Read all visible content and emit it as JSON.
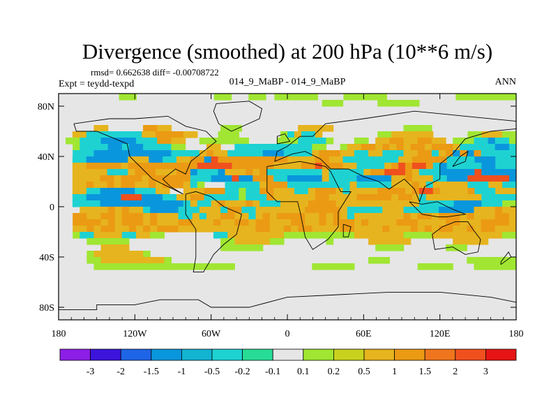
{
  "chart_data": {
    "type": "heatmap",
    "title": "Divergence (smoothed) at 200 hPa (10**6 m/s)",
    "stats_line": "rmsd= 0.662638 diff= -0.00708722",
    "subtitle_left": "Expt = teydd-texpd",
    "subtitle_center": "014_9_MaBP - 014_9_MaBP",
    "subtitle_right": "ANN",
    "x_ticks": [
      {
        "value": -180,
        "label": "180"
      },
      {
        "value": -120,
        "label": "120W"
      },
      {
        "value": -60,
        "label": "60W"
      },
      {
        "value": 0,
        "label": "0"
      },
      {
        "value": 60,
        "label": "60E"
      },
      {
        "value": 120,
        "label": "120E"
      },
      {
        "value": 180,
        "label": "180"
      }
    ],
    "y_ticks": [
      {
        "value": 80,
        "label": "80N"
      },
      {
        "value": 40,
        "label": "40N"
      },
      {
        "value": 0,
        "label": "0"
      },
      {
        "value": -40,
        "label": "40S"
      },
      {
        "value": -80,
        "label": "80S"
      }
    ],
    "xlim": [
      -180,
      180
    ],
    "ylim": [
      -90,
      90
    ],
    "colorbar": {
      "colors": [
        "#8c1ee6",
        "#3c14dc",
        "#1e64e6",
        "#0a96dc",
        "#12b4d2",
        "#1ed2d2",
        "#28dc96",
        "#e6e6e6",
        "#a0e632",
        "#c8d21e",
        "#e6b41e",
        "#eb9a14",
        "#f0761e",
        "#f0501e",
        "#e61414"
      ],
      "labels": [
        "-3",
        "-2",
        "-1.5",
        "-1",
        "-0.5",
        "-0.2",
        "-0.1",
        "0.1",
        "0.2",
        "0.5",
        "1",
        "1.5",
        "2",
        "3"
      ]
    },
    "grid_step_deg": 5,
    "field_rows": [
      "       ..         ..  .. .....   .....        .......",
      "                                      ...     ......              ",
      "                                                                  ",
      "                                                                  ",
      "                                                                  ",
      "     ++     **++       ...        +++++          ....            ",
      "  ++--------++****++   ...      .-+--+        ..++++++     ..+++..",
      " ..---=====---**++  .......    ...----.   .. ++**++**++ ...--=--.",
      "  .----==-==----..   ++  -----------..  .++**+*+*+**+***+-----==-",
      "  ---===========----+*++-----===----+***++--++---++**-+*=*=*-----",
      "  --======+++==--++**=#**********++++**++--------++*****----===---",
      "  ++*****+**********#####******++++**#***++----+*#*##*-=-----==---",
      "  +++++---+***+++**=---=+++*+*--------+-----+**###*+---=====#=====",
      "  ++++**+***+******---===#==***--=====+----=====++*+++--===######=",
      "  ++*++*+**++*+***+-.   -----+***---------+-----+++*+-+++++---++--",
      "  ++--=====---++  +++***--.--**+++--+***+-++++****+*##*++++*---+++",
      "  --=====###===--++**-----.---*++++++**++++*****+**+-++++++++-----",
      "  ----============-+--+*+++*+---++++****++++++++++++-----====---..",
      "   ++++*+*++-====---+++-**--+++++++*****+-----+++-----=====+++*++",
      "  **++**+***+*+++--+-++**++-+*+****++*+*+-+++++++*+**+***+*+++**+",
      "  ****+*+***+*+++**+++*++**+**+++**++*+***+*++++***++++**+++****+",
      "  ++*+**++*+*+***+++++++++++**++*+**++++**++++*+++*+*+**++*+**+++",
      "  .--++++--++..       --++++++++..........+++++++....++++++++++..",
      "    ......             ..+++++..      .     ++++++      +++++    ",
      "      ++++             ......                ....      ...       ",
      "    .+++++++.                                                    ",
      "    ..+++++++++.                            ...           .......",
      "     ....................           ......         .....   ......",
      "                                                                  ",
      "                                                                  ",
      "                                                                  ",
      "                                                                  ",
      "                                                                  ",
      "                                                                  ",
      "                                                                  ",
      "                                                                  "
    ],
    "field_legend": {
      "=": -1.5,
      "-": -0.5,
      ".": 0.15,
      " ": 0.0,
      "+": 0.6,
      "*": 1.2,
      "#": 2.0
    }
  }
}
